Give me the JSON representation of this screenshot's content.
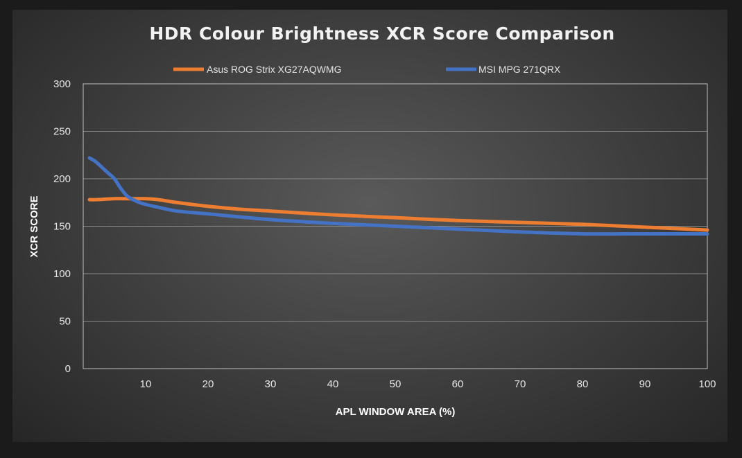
{
  "chart_data": {
    "type": "line",
    "title": "HDR Colour Brightness XCR Score Comparison",
    "xlabel": "APL WINDOW AREA (%)",
    "ylabel": "XCR SCORE",
    "xlim": [
      0,
      100
    ],
    "ylim": [
      0,
      300
    ],
    "x_ticks": [
      "10",
      "20",
      "30",
      "40",
      "50",
      "60",
      "70",
      "80",
      "90",
      "100"
    ],
    "y_ticks": [
      "0",
      "50",
      "100",
      "150",
      "200",
      "250",
      "300"
    ],
    "grid": "horizontal",
    "legend_position": "top",
    "series": [
      {
        "name": "Asus ROG Strix XG27AQWMG",
        "color": "#ed7d31",
        "x": [
          1,
          2,
          5,
          7,
          8,
          10,
          12,
          15,
          20,
          25,
          30,
          40,
          50,
          60,
          70,
          80,
          90,
          100
        ],
        "y": [
          178,
          178,
          179,
          179,
          179,
          179,
          178,
          175,
          171,
          168,
          166,
          162,
          159,
          156,
          154,
          152,
          149,
          146
        ]
      },
      {
        "name": "MSI MPG 271QRX",
        "color": "#4472c4",
        "x": [
          1,
          2,
          3,
          4,
          5,
          6,
          7,
          8,
          9,
          10,
          12,
          15,
          20,
          30,
          40,
          50,
          60,
          70,
          80,
          90,
          100
        ],
        "y": [
          222,
          218,
          212,
          206,
          200,
          190,
          182,
          178,
          175,
          173,
          170,
          166,
          163,
          157,
          153,
          150,
          147,
          144,
          142,
          142,
          142
        ]
      }
    ]
  }
}
